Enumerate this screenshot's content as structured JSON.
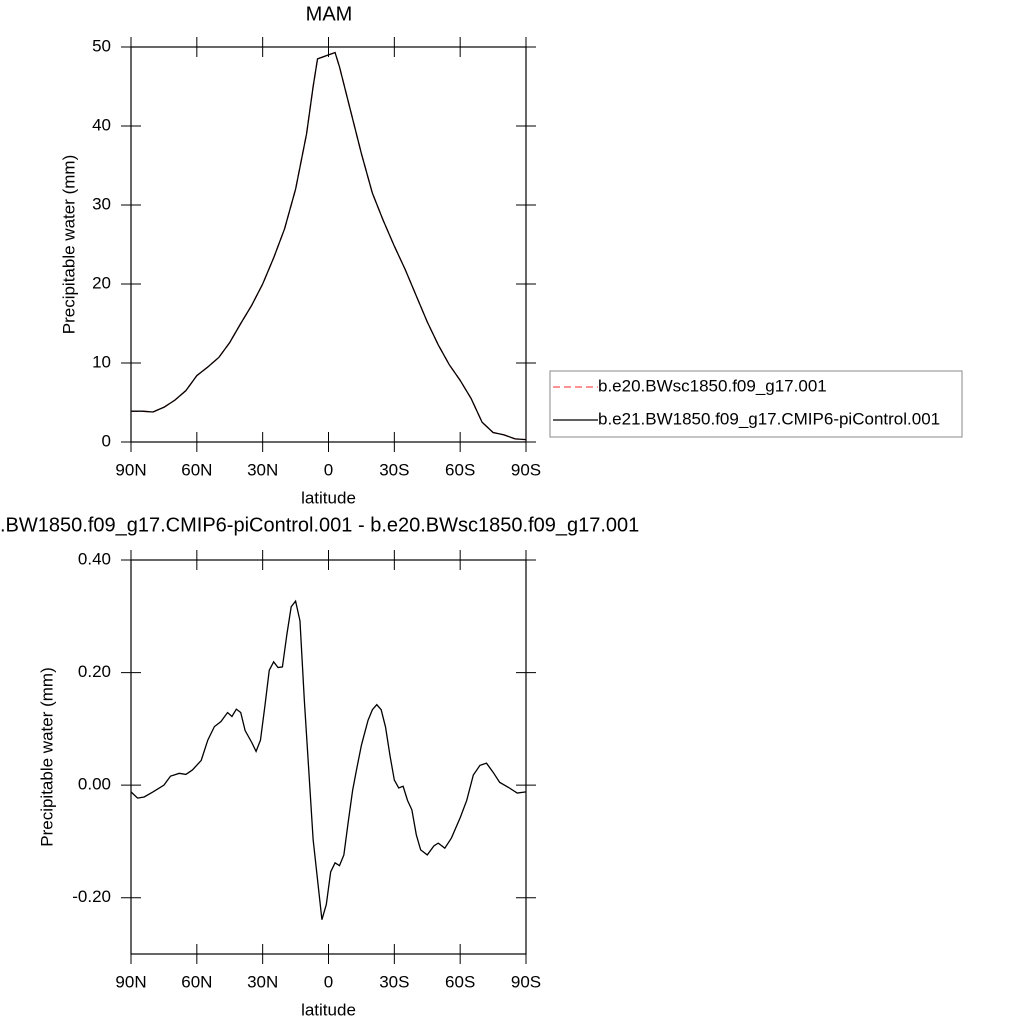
{
  "chart_data": [
    {
      "type": "line",
      "title": "MAM",
      "xlabel": "latitude",
      "ylabel": "Precipitable water (mm)",
      "x": [
        90,
        85,
        80,
        75,
        70,
        65,
        60,
        55,
        50,
        45,
        40,
        35,
        30,
        25,
        20,
        15,
        10,
        7,
        5,
        2,
        0,
        -3,
        -5,
        -10,
        -15,
        -20,
        -25,
        -30,
        -35,
        -40,
        -45,
        -50,
        -55,
        -60,
        -65,
        -70,
        -75,
        -80,
        -85,
        -90
      ],
      "series": [
        {
          "name": "b.e20.BWsc1850.f09_g17.001",
          "color": "#ff5050",
          "style": "dashed",
          "values": [
            3.9,
            3.9,
            3.8,
            4.4,
            5.3,
            6.5,
            8.4,
            9.5,
            10.7,
            12.6,
            15,
            17.3,
            20,
            23.3,
            27,
            32,
            39,
            45,
            48.5,
            48.8,
            49,
            49.3,
            47.5,
            42,
            36.5,
            31.5,
            28,
            24.8,
            21.8,
            18.5,
            15.2,
            12.3,
            9.8,
            7.8,
            5.5,
            2.5,
            1.2,
            0.9,
            0.4,
            0.3
          ]
        },
        {
          "name": "b.e21.BW1850.f09_g17.CMIP6-piControl.001",
          "color": "#000000",
          "style": "solid",
          "values": [
            3.9,
            3.9,
            3.8,
            4.4,
            5.3,
            6.5,
            8.4,
            9.5,
            10.7,
            12.6,
            15,
            17.3,
            20,
            23.3,
            27,
            32,
            39,
            45,
            48.5,
            48.8,
            49,
            49.3,
            47.5,
            42,
            36.5,
            31.5,
            28,
            24.8,
            21.8,
            18.5,
            15.2,
            12.3,
            9.8,
            7.8,
            5.5,
            2.5,
            1.2,
            0.9,
            0.4,
            0.3
          ]
        }
      ],
      "xlim": [
        90,
        -90
      ],
      "xticks": [
        {
          "value": 90,
          "label": "90N"
        },
        {
          "value": 60,
          "label": "60N"
        },
        {
          "value": 30,
          "label": "30N"
        },
        0,
        {
          "value": -30,
          "label": "30S"
        },
        {
          "value": -60,
          "label": "60S"
        },
        {
          "value": -90,
          "label": "90S"
        }
      ],
      "ylim": [
        0,
        50
      ],
      "yticks": [
        0,
        10,
        20,
        30,
        40,
        50
      ],
      "legend": "right"
    },
    {
      "type": "line",
      "title": ".BW1850.f09_g17.CMIP6-piControl.001 - b.e20.BWsc1850.f09_g17.001",
      "xlabel": "latitude",
      "ylabel": "Precipitable water (mm)",
      "x": [
        90,
        87,
        84,
        80,
        75,
        72,
        68,
        65,
        62,
        58,
        55,
        52,
        49,
        46,
        44,
        42,
        40,
        38,
        35,
        33,
        31,
        29,
        27,
        25,
        23,
        21,
        19,
        17,
        15,
        13,
        11,
        9,
        7,
        5,
        3,
        1,
        -1,
        -3,
        -5,
        -7,
        -9,
        -11,
        -13,
        -15,
        -18,
        -20,
        -22,
        -24,
        -26,
        -28,
        -30,
        -32,
        -34,
        -36,
        -38,
        -40,
        -42,
        -45,
        -48,
        -50,
        -53,
        -56,
        -60,
        -63,
        -66,
        -69,
        -72,
        -75,
        -78,
        -82,
        -86,
        -90
      ],
      "series": [
        {
          "color": "#000000",
          "style": "solid",
          "values": [
            -0.012,
            -0.023,
            -0.021,
            -0.012,
            0,
            0.016,
            0.021,
            0.019,
            0.027,
            0.044,
            0.08,
            0.104,
            0.113,
            0.129,
            0.122,
            0.135,
            0.129,
            0.097,
            0.076,
            0.06,
            0.08,
            0.14,
            0.204,
            0.219,
            0.209,
            0.21,
            0.267,
            0.317,
            0.327,
            0.292,
            0.15,
            0.027,
            -0.097,
            -0.168,
            -0.239,
            -0.212,
            -0.154,
            -0.138,
            -0.143,
            -0.124,
            -0.065,
            -0.009,
            0.032,
            0.071,
            0.115,
            0.134,
            0.143,
            0.134,
            0.103,
            0.053,
            0.009,
            -0.005,
            -0.002,
            -0.027,
            -0.044,
            -0.088,
            -0.115,
            -0.124,
            -0.108,
            -0.103,
            -0.112,
            -0.094,
            -0.058,
            -0.027,
            0.018,
            0.035,
            0.039,
            0.023,
            0.005,
            -0.004,
            -0.014,
            -0.012
          ]
        }
      ],
      "xlim": [
        90,
        -90
      ],
      "xticks": [
        {
          "value": 90,
          "label": "90N"
        },
        {
          "value": 60,
          "label": "60N"
        },
        {
          "value": 30,
          "label": "30N"
        },
        0,
        {
          "value": -30,
          "label": "30S"
        },
        {
          "value": -60,
          "label": "60S"
        },
        {
          "value": -90,
          "label": "90S"
        }
      ],
      "ylim": [
        -0.3,
        0.4
      ],
      "yticks": [
        {
          "value": 0.4,
          "label": "0.40"
        },
        {
          "value": 0.2,
          "label": "0.20"
        },
        {
          "value": 0,
          "label": "0.00"
        },
        {
          "value": -0.2,
          "label": "-0.20"
        }
      ]
    }
  ]
}
